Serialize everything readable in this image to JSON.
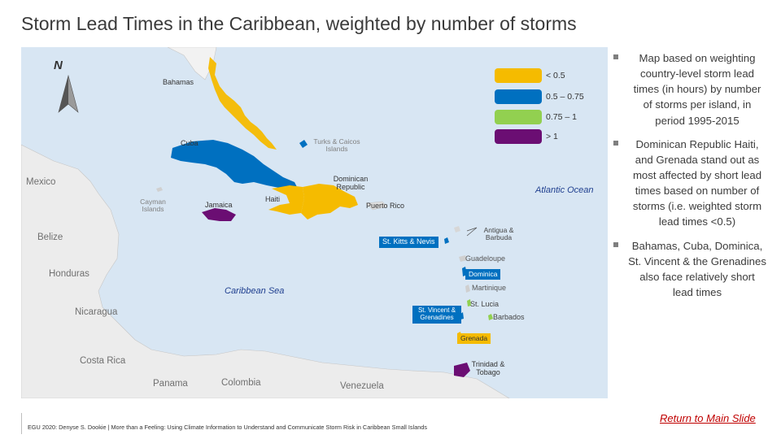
{
  "title": "Storm Lead Times in the Caribbean, weighted by number of storms",
  "map": {
    "north_label": "N",
    "legend": [
      {
        "label": "< 0.5",
        "color": "#f5bb00"
      },
      {
        "label": "0.5 – 0.75",
        "color": "#0070c0"
      },
      {
        "label": "0.75 – 1",
        "color": "#92d050"
      },
      {
        "label": "> 1",
        "color": "#6b0e73"
      }
    ],
    "labels": {
      "bahamas": "Bahamas",
      "cuba": "Cuba",
      "turks_caicos": "Turks & Caicos Islands",
      "mexico": "Mexico",
      "cayman": "Cayman Islands",
      "jamaica": "Jamaica",
      "haiti": "Haiti",
      "dominican_republic": "Dominican Republic",
      "atlantic_ocean": "Atlantic Ocean",
      "puerto_rico": "Puerto Rico",
      "belize": "Belize",
      "antigua": "Antigua & Barbuda",
      "st_kitts": "St. Kitts & Nevis",
      "guadeloupe": "Guadeloupe",
      "honduras": "Honduras",
      "dominica": "Dominica",
      "martinique": "Martinique",
      "caribbean_sea": "Caribbean Sea",
      "st_lucia": "St. Lucia",
      "nicaragua": "Nicaragua",
      "st_vincent": "St. Vincent & Grenadines",
      "barbados": "Barbados",
      "grenada": "Grenada",
      "costa_rica": "Costa Rica",
      "trinidad": "Trinidad & Tobago",
      "panama": "Panama",
      "colombia": "Colombia",
      "venezuela": "Venezuela"
    }
  },
  "bullets": [
    "Map based on weighting country-level storm lead times (in hours) by number of storms per island, in period 1995-2015",
    "Dominican Republic Haiti, and Grenada stand out as most affected by short lead times based on number of storms (i.e. weighted storm lead times <0.5)",
    "Bahamas, Cuba, Dominica, St. Vincent & the Grenadines also face relatively short lead times"
  ],
  "footer": "EGU 2020: Denyse S. Dookie | More than a Feeling: Using Climate Information to Understand and Communicate Storm Risk in Caribbean Small Islands",
  "return_link": "Return to Main Slide"
}
